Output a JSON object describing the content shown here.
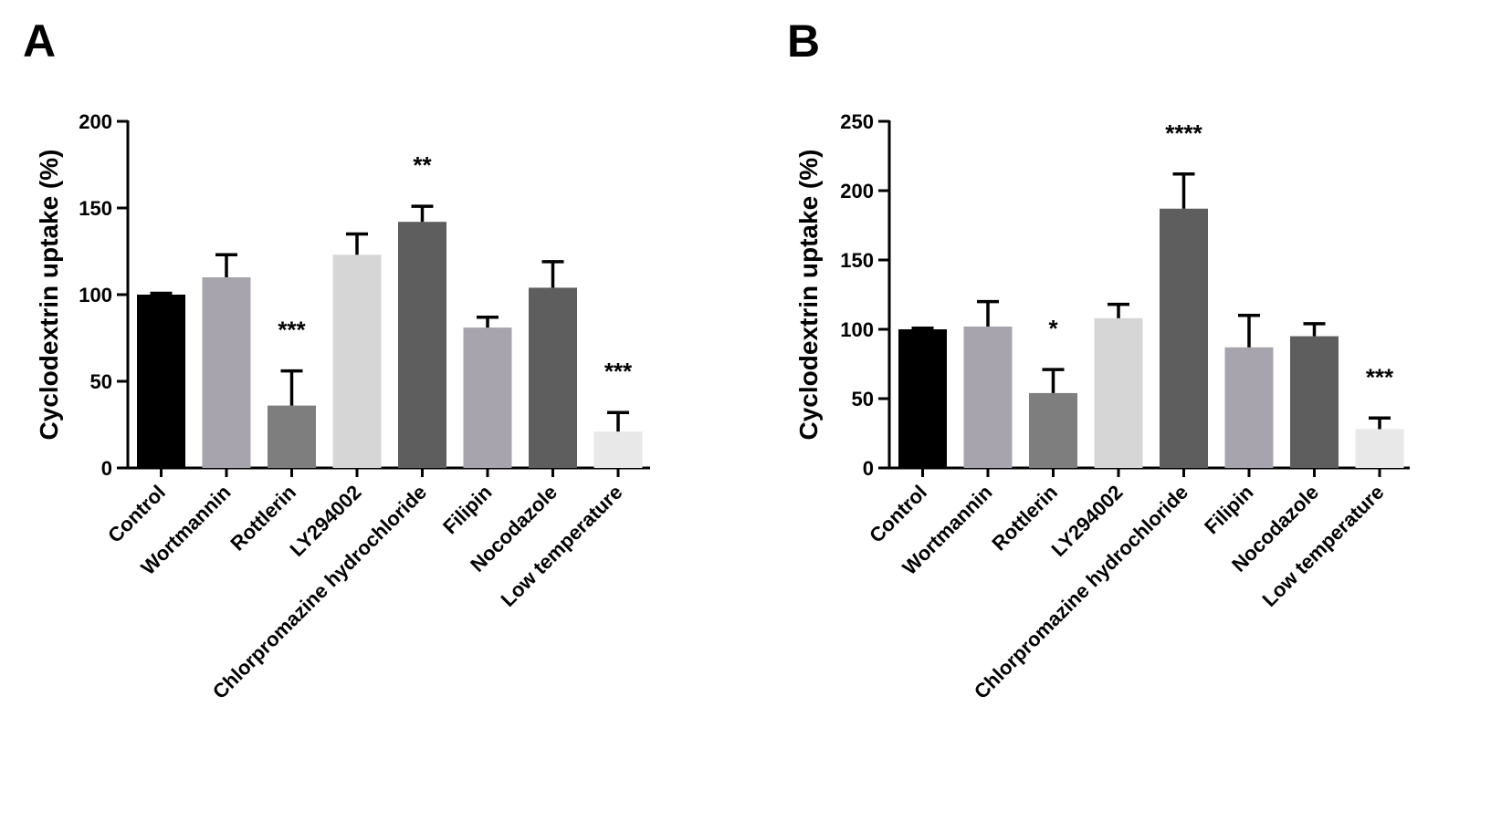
{
  "chart_data": [
    {
      "panel": "A",
      "type": "bar",
      "title": "",
      "xlabel": "",
      "ylabel": "Cyclodextrin uptake (%)",
      "ylim": [
        0,
        200
      ],
      "yticks": [
        0,
        50,
        100,
        150,
        200
      ],
      "grid": false,
      "categories": [
        "Control",
        "Wortmannin",
        "Rottlerin",
        "LY294002",
        "Chlorpromazine hydrochloride",
        "Filipin",
        "Nocodazole",
        "Low temperature"
      ],
      "values": [
        100,
        110,
        36,
        123,
        142,
        81,
        104,
        21
      ],
      "errors": [
        0.8,
        13,
        20,
        12,
        9,
        6,
        15,
        11
      ],
      "significance": [
        "",
        "",
        "***",
        "",
        "**",
        "",
        "",
        "***"
      ],
      "colors": [
        "#000000",
        "#a7a4ad",
        "#7e7e7e",
        "#d6d6d6",
        "#5e5e5e",
        "#a7a4ad",
        "#5e5e5e",
        "#e8e8e8"
      ]
    },
    {
      "panel": "B",
      "type": "bar",
      "title": "",
      "xlabel": "",
      "ylabel": "Cyclodextrin uptake (%)",
      "ylim": [
        0,
        250
      ],
      "yticks": [
        0,
        50,
        100,
        150,
        200,
        250
      ],
      "grid": false,
      "categories": [
        "Control",
        "Wortmannin",
        "Rottlerin",
        "LY294002",
        "Chlorpromazine hydrochloride",
        "Filipin",
        "Nocodazole",
        "Low temperature"
      ],
      "values": [
        100,
        102,
        54,
        108,
        187,
        87,
        95,
        28
      ],
      "errors": [
        0.8,
        18,
        17,
        10,
        25,
        23,
        9,
        8
      ],
      "significance": [
        "",
        "",
        "*",
        "",
        "****",
        "",
        "",
        "***"
      ],
      "colors": [
        "#000000",
        "#a7a4ad",
        "#7e7e7e",
        "#d6d6d6",
        "#5e5e5e",
        "#a7a4ad",
        "#5e5e5e",
        "#e8e8e8"
      ]
    }
  ]
}
